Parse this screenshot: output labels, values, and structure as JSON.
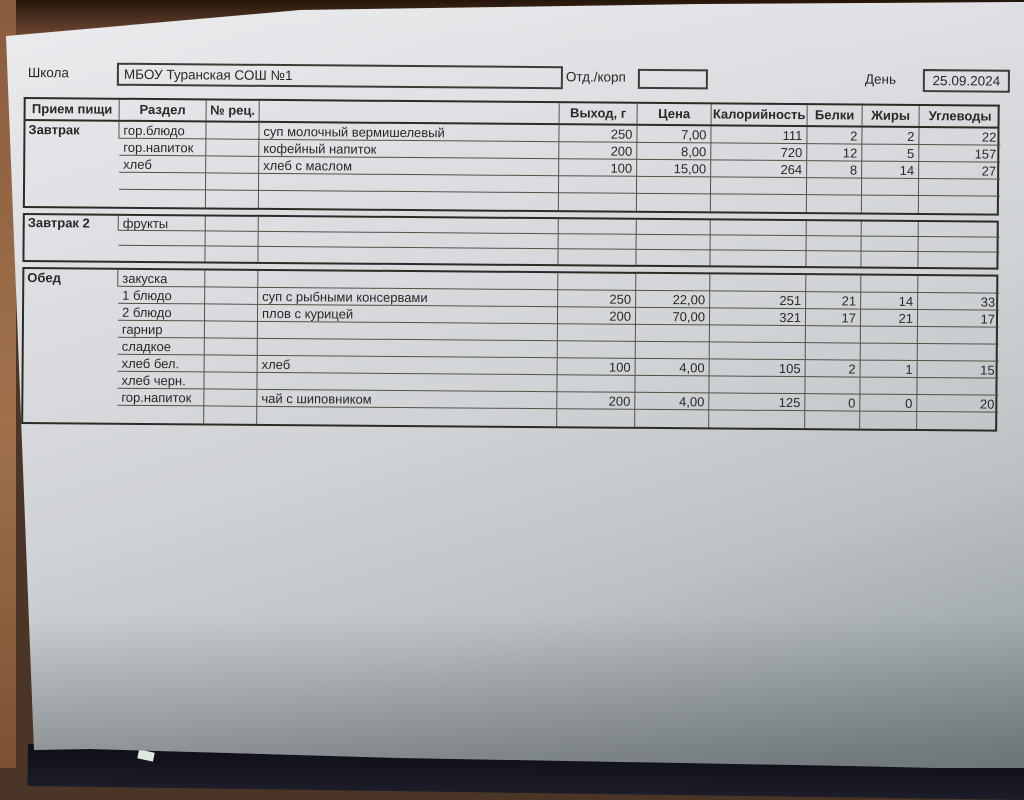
{
  "form": {
    "school_label": "Школа",
    "school_value": "МБОУ Туранская СОШ №1",
    "dept_label": "Отд./корп",
    "dept_value": "",
    "day_label": "День",
    "day_value": "25.09.2024"
  },
  "table": {
    "headers": [
      "Прием пищи",
      "Раздел",
      "№ рец.",
      "",
      "Выход, г",
      "Цена",
      "Калорийность",
      "Белки",
      "Жиры",
      "Углеводы"
    ],
    "sections": [
      {
        "meal": "Завтрак",
        "rows": [
          {
            "razdel": "гор.блюдо",
            "rec": "",
            "dish": "суп молочный вермишелевый",
            "out": "250",
            "price": "7,00",
            "cal": "111",
            "protein": "2",
            "fat": "2",
            "carbs": "22"
          },
          {
            "razdel": "гор.напиток",
            "rec": "",
            "dish": "кофейный напиток",
            "out": "200",
            "price": "8,00",
            "cal": "720",
            "protein": "12",
            "fat": "5",
            "carbs": "157"
          },
          {
            "razdel": "хлеб",
            "rec": "",
            "dish": "хлеб с маслом",
            "out": "100",
            "price": "15,00",
            "cal": "264",
            "protein": "8",
            "fat": "14",
            "carbs": "27"
          },
          {
            "razdel": "",
            "rec": "",
            "dish": "",
            "out": "",
            "price": "",
            "cal": "",
            "protein": "",
            "fat": "",
            "carbs": ""
          },
          {
            "razdel": "",
            "rec": "",
            "dish": "",
            "out": "",
            "price": "",
            "cal": "",
            "protein": "",
            "fat": "",
            "carbs": ""
          }
        ]
      },
      {
        "meal": "Завтрак 2",
        "rows": [
          {
            "razdel": "фрукты",
            "rec": "",
            "dish": "",
            "out": "",
            "price": "",
            "cal": "",
            "protein": "",
            "fat": "",
            "carbs": ""
          },
          {
            "razdel": "",
            "rec": "",
            "dish": "",
            "out": "",
            "price": "",
            "cal": "",
            "protein": "",
            "fat": "",
            "carbs": ""
          },
          {
            "razdel": "",
            "rec": "",
            "dish": "",
            "out": "",
            "price": "",
            "cal": "",
            "protein": "",
            "fat": "",
            "carbs": ""
          }
        ]
      },
      {
        "meal": "Обед",
        "rows": [
          {
            "razdel": "закуска",
            "rec": "",
            "dish": "",
            "out": "",
            "price": "",
            "cal": "",
            "protein": "",
            "fat": "",
            "carbs": ""
          },
          {
            "razdel": "1 блюдо",
            "rec": "",
            "dish": "суп с рыбными консервами",
            "out": "250",
            "price": "22,00",
            "cal": "251",
            "protein": "21",
            "fat": "14",
            "carbs": "33"
          },
          {
            "razdel": "2 блюдо",
            "rec": "",
            "dish": "плов с курицей",
            "out": "200",
            "price": "70,00",
            "cal": "321",
            "protein": "17",
            "fat": "21",
            "carbs": "17"
          },
          {
            "razdel": "гарнир",
            "rec": "",
            "dish": "",
            "out": "",
            "price": "",
            "cal": "",
            "protein": "",
            "fat": "",
            "carbs": ""
          },
          {
            "razdel": "сладкое",
            "rec": "",
            "dish": "",
            "out": "",
            "price": "",
            "cal": "",
            "protein": "",
            "fat": "",
            "carbs": ""
          },
          {
            "razdel": "хлеб бел.",
            "rec": "",
            "dish": "хлеб",
            "out": "100",
            "price": "4,00",
            "cal": "105",
            "protein": "2",
            "fat": "1",
            "carbs": "15"
          },
          {
            "razdel": "хлеб черн.",
            "rec": "",
            "dish": "",
            "out": "",
            "price": "",
            "cal": "",
            "protein": "",
            "fat": "",
            "carbs": ""
          },
          {
            "razdel": "гор.напиток",
            "rec": "",
            "dish": "чай с шиповником",
            "out": "200",
            "price": "4,00",
            "cal": "125",
            "protein": "0",
            "fat": "0",
            "carbs": "20"
          },
          {
            "razdel": "",
            "rec": "",
            "dish": "",
            "out": "",
            "price": "",
            "cal": "",
            "protein": "",
            "fat": "",
            "carbs": ""
          }
        ]
      }
    ]
  }
}
